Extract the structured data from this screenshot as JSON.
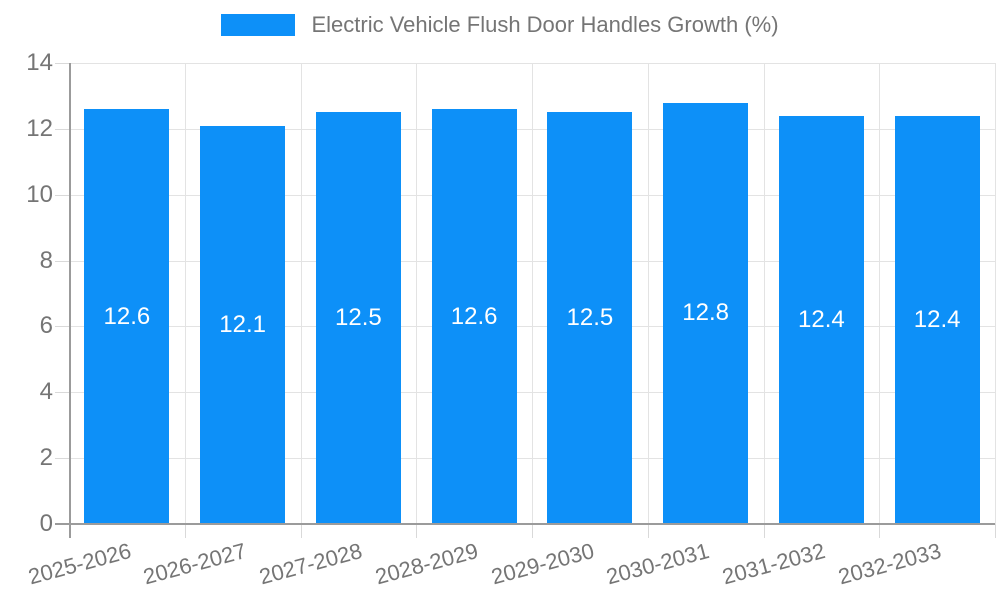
{
  "legend": {
    "label": "Electric Vehicle Flush Door Handles Growth (%)"
  },
  "chart_data": {
    "type": "bar",
    "title": "Electric Vehicle Flush Door Handles Growth (%)",
    "categories": [
      "2025-2026",
      "2026-2027",
      "2027-2028",
      "2028-2029",
      "2029-2030",
      "2030-2031",
      "2031-2032",
      "2032-2033"
    ],
    "values": [
      12.6,
      12.1,
      12.5,
      12.6,
      12.5,
      12.8,
      12.4,
      12.4
    ],
    "bar_labels": [
      "12.6",
      "12.1",
      "12.5",
      "12.6",
      "12.5",
      "12.8",
      "12.4",
      "12.4"
    ],
    "xlabel": "",
    "ylabel": "",
    "ylim": [
      0,
      14
    ],
    "yticks": [
      0,
      2,
      4,
      6,
      8,
      10,
      12,
      14
    ],
    "grid": true,
    "legend_position": "top",
    "colors": {
      "bar": "#0d90f8",
      "bar_label": "#ffffff",
      "axis_line": "#9b9b9b",
      "grid_line": "#e3e3e3",
      "tick_line": "#d9d9d9",
      "text": "#757575"
    }
  }
}
